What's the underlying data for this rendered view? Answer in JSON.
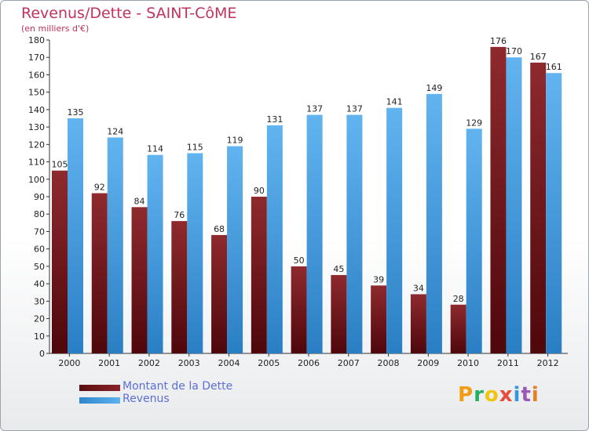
{
  "title": "Revenus/Dette - SAINT-CôME",
  "subtitle": "(en milliers d'€)",
  "logo": {
    "letters": [
      "P",
      "r",
      "o",
      "x",
      "i",
      "t",
      "i"
    ],
    "colors": [
      "#f39c12",
      "#27ae60",
      "#f1c40f",
      "#e74c3c",
      "#3498db",
      "#9b59b6",
      "#e67e22"
    ]
  },
  "colors": {
    "dette": "#6b1014",
    "revenus": "#3a9be2",
    "title": "#c0335c"
  },
  "chart_data": {
    "type": "bar",
    "title": "Revenus/Dette - SAINT-CôME",
    "categories": [
      "2000",
      "2001",
      "2002",
      "2003",
      "2004",
      "2005",
      "2006",
      "2007",
      "2008",
      "2009",
      "2010",
      "2011",
      "2012"
    ],
    "series": [
      {
        "name": "Montant de la Dette",
        "values": [
          105,
          92,
          84,
          76,
          68,
          90,
          50,
          45,
          39,
          34,
          28,
          176,
          167
        ]
      },
      {
        "name": "Revenus",
        "values": [
          135,
          124,
          114,
          115,
          119,
          131,
          137,
          137,
          141,
          149,
          129,
          170,
          161
        ]
      }
    ],
    "ylim": [
      0,
      180
    ],
    "yticks": [
      "0",
      "10",
      "20",
      "30",
      "40",
      "50",
      "60",
      "70",
      "80",
      "90",
      "100",
      "110",
      "120",
      "130",
      "140",
      "150",
      "160",
      "170",
      "180"
    ],
    "grid": false,
    "legend": "bottom-left"
  }
}
